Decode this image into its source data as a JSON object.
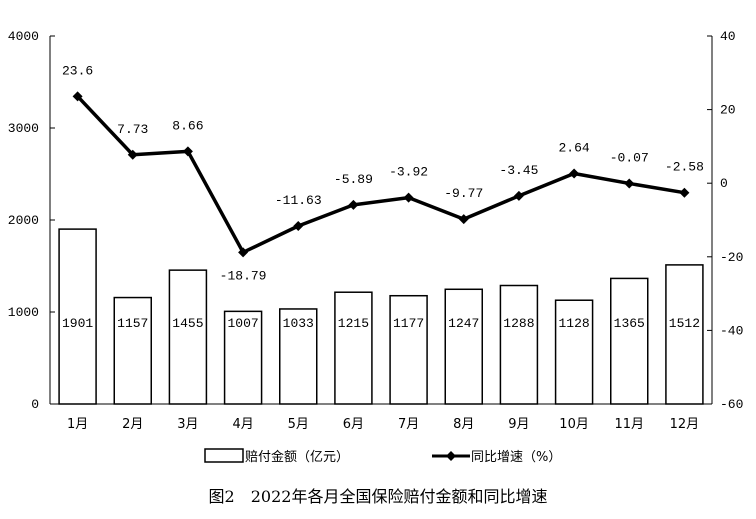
{
  "caption": "图2　2022年各月全国保险赔付金额和同比增速",
  "chart_data": {
    "type": "bar",
    "categories": [
      "1月",
      "2月",
      "3月",
      "4月",
      "5月",
      "6月",
      "7月",
      "8月",
      "9月",
      "10月",
      "11月",
      "12月"
    ],
    "series": [
      {
        "name": "赔付金额（亿元）",
        "type": "bar",
        "axis": "left",
        "values": [
          1901,
          1157,
          1455,
          1007,
          1033,
          1215,
          1177,
          1247,
          1288,
          1128,
          1365,
          1512
        ],
        "labels": [
          "1901",
          "1157",
          "1455",
          "1007",
          "1033",
          "1215",
          "1177",
          "1247",
          "1288",
          "1128",
          "1365",
          "1512"
        ]
      },
      {
        "name": "同比增速（%）",
        "type": "line",
        "axis": "right",
        "values": [
          23.6,
          7.73,
          8.66,
          -18.79,
          -11.63,
          -5.89,
          -3.92,
          -9.77,
          -3.45,
          2.64,
          -0.07,
          -2.58
        ],
        "labels": [
          "23.6",
          "7.73",
          "8.66",
          "-18.79",
          "-11.63",
          "-5.89",
          "-3.92",
          "-9.77",
          "-3.45",
          "2.64",
          "-0.07",
          "-2.58"
        ]
      }
    ],
    "y_left": {
      "ylim": [
        0,
        4000
      ],
      "ticks": [
        "0",
        "1000",
        "2000",
        "3000",
        "4000"
      ]
    },
    "y_right": {
      "ylim": [
        -60,
        40
      ],
      "ticks": [
        "-60",
        "-40",
        "-20",
        "0",
        "20",
        "40"
      ]
    },
    "legend_position": "bottom",
    "grid": false,
    "colors": {
      "bar_fill": "#ffffff",
      "bar_stroke": "#000000",
      "line": "#000000"
    }
  }
}
